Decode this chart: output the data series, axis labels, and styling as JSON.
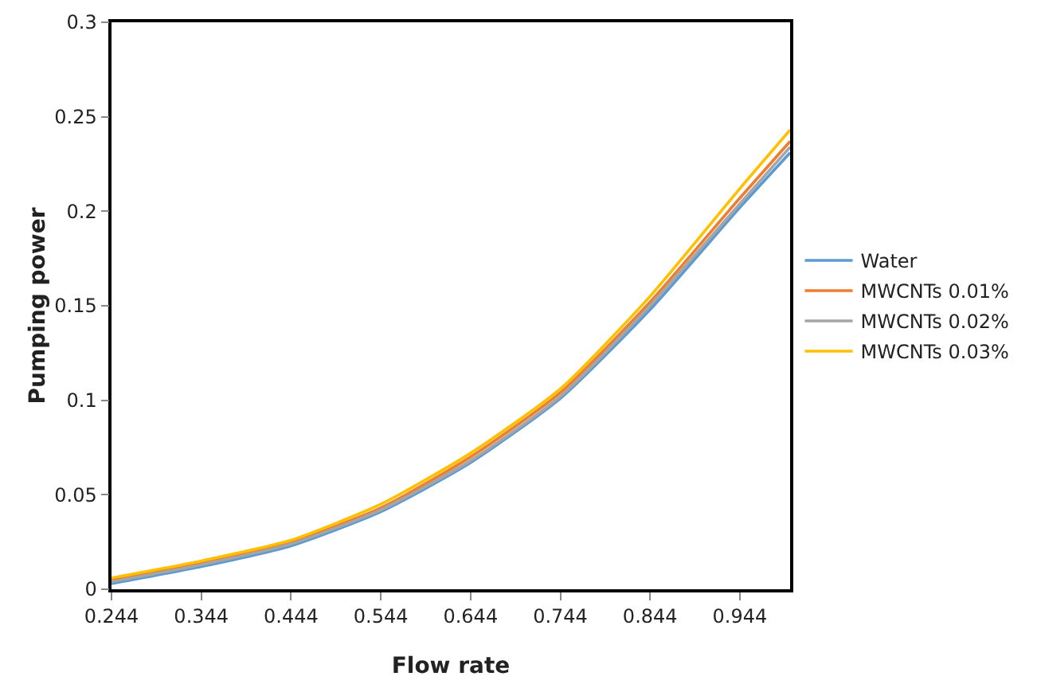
{
  "chart_data": {
    "type": "line",
    "xlabel": "Flow rate",
    "ylabel": "Pumping power",
    "x": [
      0.244,
      0.344,
      0.444,
      0.544,
      0.644,
      0.744,
      0.844,
      0.944,
      1.0
    ],
    "series": [
      {
        "name": "Water",
        "color": "#5b9bd5",
        "values": [
          0.003,
          0.012,
          0.023,
          0.041,
          0.067,
          0.101,
          0.148,
          0.202,
          0.231
        ]
      },
      {
        "name": "MWCNTs 0.01%",
        "color": "#ed7d31",
        "values": [
          0.005,
          0.014,
          0.025,
          0.043,
          0.07,
          0.104,
          0.152,
          0.207,
          0.237
        ]
      },
      {
        "name": "MWCNTs 0.02%",
        "color": "#a5a5a5",
        "values": [
          0.004,
          0.013,
          0.024,
          0.042,
          0.068,
          0.102,
          0.15,
          0.204,
          0.234
        ]
      },
      {
        "name": "MWCNTs 0.03%",
        "color": "#ffc000",
        "values": [
          0.006,
          0.015,
          0.026,
          0.045,
          0.072,
          0.106,
          0.155,
          0.212,
          0.243
        ]
      }
    ],
    "xlim": [
      0.244,
      1.0
    ],
    "xticks": [
      0.244,
      0.344,
      0.444,
      0.544,
      0.644,
      0.744,
      0.844,
      0.944
    ],
    "ylim": [
      0,
      0.3
    ],
    "yticks": [
      0,
      0.05,
      0.1,
      0.15,
      0.2,
      0.25,
      0.3
    ],
    "grid": false,
    "legend": "right",
    "marker": "none",
    "line_style": "solid"
  }
}
